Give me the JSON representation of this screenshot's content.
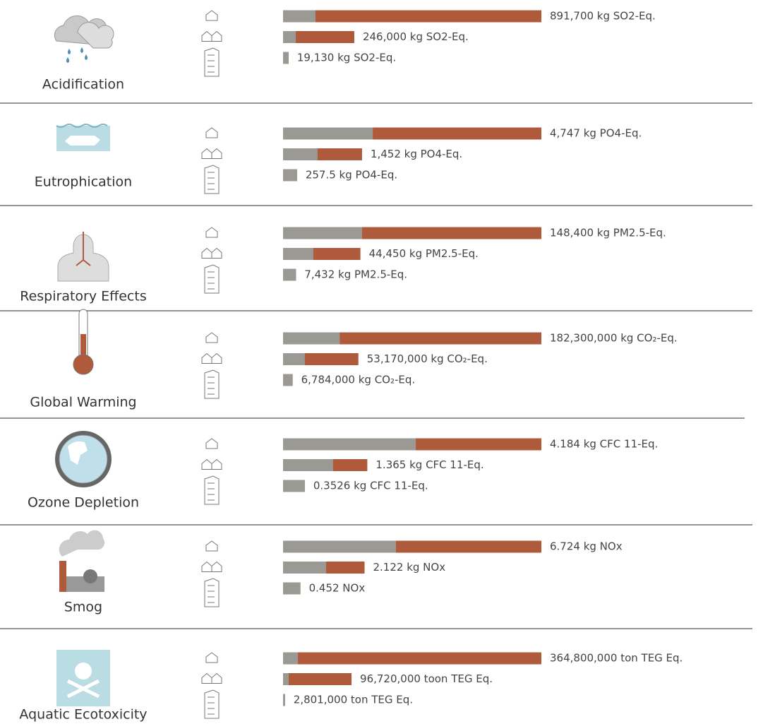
{
  "chart_data": [
    {
      "type": "bar",
      "title": "Acidification",
      "series": [
        {
          "color": "#b05a3c",
          "values": [
            891700,
            246000,
            19130
          ],
          "value_labels": [
            "891,700 kg SO2-Eq.",
            "246,000 kg SO2-Eq.",
            "19,130 kg SO2-Eq."
          ]
        },
        {
          "color": "#9a9993",
          "values": [
            112000,
            44000,
            19130
          ]
        }
      ]
    },
    {
      "type": "bar",
      "title": "Eutrophication",
      "series": [
        {
          "color": "#b05a3c",
          "values": [
            4747,
            1452,
            257.5
          ],
          "value_labels": [
            "4,747 kg PO4-Eq.",
            "1,452 kg PO4-Eq.",
            "257.5 kg PO4-Eq."
          ]
        },
        {
          "color": "#9a9993",
          "values": [
            1650,
            635,
            257.5
          ]
        }
      ]
    },
    {
      "type": "bar",
      "title": "Respiratory Effects",
      "series": [
        {
          "color": "#b05a3c",
          "values": [
            148400,
            44450,
            7432
          ],
          "value_labels": [
            "148,400 kg PM2.5-Eq.",
            "44,450 kg PM2.5-Eq.",
            "7,432 kg PM2.5-Eq."
          ]
        },
        {
          "color": "#9a9993",
          "values": [
            45400,
            17400,
            7432
          ]
        }
      ]
    },
    {
      "type": "bar",
      "title": "Global Warming",
      "series": [
        {
          "color": "#b05a3c",
          "values": [
            182300000,
            53170000,
            6784000
          ],
          "value_labels": [
            "182,300,000 kg CO₂-Eq.",
            "53,170,000 kg CO₂-Eq.",
            "6,784,000 kg CO₂-Eq."
          ]
        },
        {
          "color": "#9a9993",
          "values": [
            40000000,
            15400000,
            6784000
          ]
        }
      ]
    },
    {
      "type": "bar",
      "title": "Ozone Depletion",
      "series": [
        {
          "color": "#b05a3c",
          "values": [
            4.184,
            1.365,
            0.3526
          ],
          "value_labels": [
            "4.184 kg CFC 11-Eq.",
            "1.365 kg CFC 11-Eq.",
            "0.3526 kg CFC 11-Eq."
          ]
        },
        {
          "color": "#9a9993",
          "values": [
            2.15,
            0.81,
            0.3526
          ]
        }
      ]
    },
    {
      "type": "bar",
      "title": "Smog",
      "series": [
        {
          "color": "#b05a3c",
          "values": [
            6.724,
            2.122,
            0.452
          ],
          "value_labels": [
            "6.724 kg NOx",
            "2.122 kg NOx",
            "0.452 NOx"
          ]
        },
        {
          "color": "#9a9993",
          "values": [
            2.94,
            1.12,
            0.452
          ]
        }
      ]
    },
    {
      "type": "bar",
      "title": "Aquatic Ecotoxicity",
      "series": [
        {
          "color": "#b05a3c",
          "values": [
            364800000,
            96720000,
            2801000
          ],
          "value_labels": [
            "364,800,000 ton TEG Eq.",
            "96,720,000 toon TEG Eq.",
            "2,801,000 ton TEG Eq."
          ]
        },
        {
          "color": "#9a9993",
          "values": [
            21000000,
            8000000,
            2801000
          ]
        }
      ]
    }
  ]
}
